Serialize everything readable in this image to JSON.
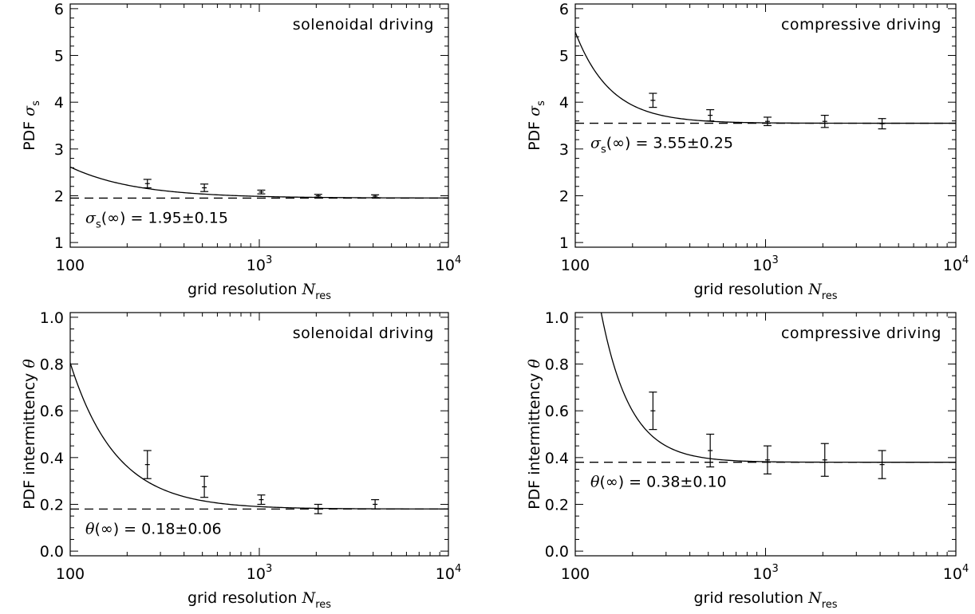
{
  "chart_data": [
    {
      "type": "scatter",
      "panel_label": "solenoidal driving",
      "xlabel": "grid resolution N_res",
      "xlabel_parts": {
        "text": "grid resolution ",
        "symbol": "N",
        "subscript": "res"
      },
      "ylabel": "PDF σ_s",
      "ylabel_parts": {
        "text": "PDF ",
        "symbol": "σ",
        "subscript": "s"
      },
      "x_scale": "log",
      "xlim": [
        100,
        10000
      ],
      "ylim": [
        0.9,
        6.1
      ],
      "x_tick_labels": [
        {
          "value": 100,
          "text": "100"
        },
        {
          "value": 1000,
          "base": "10",
          "exp": "3"
        },
        {
          "value": 10000,
          "base": "10",
          "exp": "4"
        }
      ],
      "y_ticks": [
        1,
        2,
        3,
        4,
        5,
        6
      ],
      "y_minor": [
        1.2,
        1.4,
        1.6,
        1.8,
        2.2,
        2.4,
        2.6,
        2.8,
        3.2,
        3.4,
        3.6,
        3.8,
        4.2,
        4.4,
        4.6,
        4.8,
        5.2,
        5.4,
        5.6,
        5.8
      ],
      "points": [
        {
          "x": 256,
          "y": 2.26,
          "err": 0.09
        },
        {
          "x": 512,
          "y": 2.17,
          "err": 0.08
        },
        {
          "x": 1024,
          "y": 2.08,
          "err": 0.04
        },
        {
          "x": 2048,
          "y": 2.0,
          "err": 0.03
        },
        {
          "x": 4096,
          "y": 1.99,
          "err": 0.03
        }
      ],
      "fit": {
        "asymptote": 1.95,
        "a": 0.665,
        "decay_per_decade": 2.9
      },
      "annotation": {
        "symbol": "σ",
        "subscript": "s",
        "rest": "(∞) = 1.95±0.15"
      }
    },
    {
      "type": "scatter",
      "panel_label": "compressive driving",
      "xlabel": "grid resolution N_res",
      "xlabel_parts": {
        "text": "grid resolution ",
        "symbol": "N",
        "subscript": "res"
      },
      "ylabel": "PDF σ_s",
      "ylabel_parts": {
        "text": "PDF ",
        "symbol": "σ",
        "subscript": "s"
      },
      "x_scale": "log",
      "xlim": [
        100,
        10000
      ],
      "ylim": [
        0.9,
        6.1
      ],
      "x_tick_labels": [
        {
          "value": 100,
          "text": "100"
        },
        {
          "value": 1000,
          "base": "10",
          "exp": "3"
        },
        {
          "value": 10000,
          "base": "10",
          "exp": "4"
        }
      ],
      "y_ticks": [
        1,
        2,
        3,
        4,
        5,
        6
      ],
      "y_minor": [
        1.2,
        1.4,
        1.6,
        1.8,
        2.2,
        2.4,
        2.6,
        2.8,
        3.2,
        3.4,
        3.6,
        3.8,
        4.2,
        4.4,
        4.6,
        4.8,
        5.2,
        5.4,
        5.6,
        5.8
      ],
      "points": [
        {
          "x": 256,
          "y": 4.04,
          "err": 0.15
        },
        {
          "x": 512,
          "y": 3.72,
          "err": 0.12
        },
        {
          "x": 1024,
          "y": 3.59,
          "err": 0.09
        },
        {
          "x": 2048,
          "y": 3.59,
          "err": 0.13
        },
        {
          "x": 4096,
          "y": 3.54,
          "err": 0.11
        }
      ],
      "fit": {
        "asymptote": 3.55,
        "a": 1.95,
        "decay_per_decade": 5.4
      },
      "annotation": {
        "symbol": "σ",
        "subscript": "s",
        "rest": "(∞) = 3.55±0.25"
      }
    },
    {
      "type": "scatter",
      "panel_label": "solenoidal driving",
      "xlabel": "grid resolution N_res",
      "xlabel_parts": {
        "text": "grid resolution ",
        "symbol": "N",
        "subscript": "res"
      },
      "ylabel": "PDF intermittency θ",
      "ylabel_parts": {
        "text": "PDF intermittency ",
        "symbol": "θ",
        "subscript": ""
      },
      "x_scale": "log",
      "xlim": [
        100,
        10000
      ],
      "ylim": [
        -0.02,
        1.02
      ],
      "x_tick_labels": [
        {
          "value": 100,
          "text": "100"
        },
        {
          "value": 1000,
          "base": "10",
          "exp": "3"
        },
        {
          "value": 10000,
          "base": "10",
          "exp": "4"
        }
      ],
      "y_ticks": [
        0.0,
        0.2,
        0.4,
        0.6,
        0.8,
        1.0
      ],
      "y_tick_text": [
        "0.0",
        "0.2",
        "0.4",
        "0.6",
        "0.8",
        "1.0"
      ],
      "y_minor": [
        0.05,
        0.1,
        0.15,
        0.25,
        0.3,
        0.35,
        0.45,
        0.5,
        0.55,
        0.65,
        0.7,
        0.75,
        0.85,
        0.9,
        0.95
      ],
      "points": [
        {
          "x": 256,
          "y": 0.37,
          "err": 0.06
        },
        {
          "x": 512,
          "y": 0.275,
          "err": 0.045
        },
        {
          "x": 1024,
          "y": 0.22,
          "err": 0.02
        },
        {
          "x": 2048,
          "y": 0.18,
          "err": 0.02
        },
        {
          "x": 4096,
          "y": 0.2,
          "err": 0.02
        }
      ],
      "fit": {
        "asymptote": 0.18,
        "a": 0.625,
        "decay_per_decade": 4.1
      },
      "annotation": {
        "symbol": "θ",
        "subscript": "",
        "rest": "(∞) = 0.18±0.06"
      }
    },
    {
      "type": "scatter",
      "panel_label": "compressive driving",
      "xlabel": "grid resolution N_res",
      "xlabel_parts": {
        "text": "grid resolution ",
        "symbol": "N",
        "subscript": "res"
      },
      "ylabel": "PDF intermittency θ",
      "ylabel_parts": {
        "text": "PDF intermittency ",
        "symbol": "θ",
        "subscript": ""
      },
      "x_scale": "log",
      "xlim": [
        100,
        10000
      ],
      "ylim": [
        -0.02,
        1.02
      ],
      "x_tick_labels": [
        {
          "value": 100,
          "text": "100"
        },
        {
          "value": 1000,
          "base": "10",
          "exp": "3"
        },
        {
          "value": 10000,
          "base": "10",
          "exp": "4"
        }
      ],
      "y_ticks": [
        0.0,
        0.2,
        0.4,
        0.6,
        0.8,
        1.0
      ],
      "y_tick_text": [
        "0.0",
        "0.2",
        "0.4",
        "0.6",
        "0.8",
        "1.0"
      ],
      "y_minor": [
        0.05,
        0.1,
        0.15,
        0.25,
        0.3,
        0.35,
        0.45,
        0.5,
        0.55,
        0.65,
        0.7,
        0.75,
        0.85,
        0.9,
        0.95
      ],
      "points": [
        {
          "x": 256,
          "y": 0.6,
          "err": 0.08
        },
        {
          "x": 512,
          "y": 0.43,
          "err": 0.07
        },
        {
          "x": 1024,
          "y": 0.39,
          "err": 0.06
        },
        {
          "x": 2048,
          "y": 0.39,
          "err": 0.07
        },
        {
          "x": 4096,
          "y": 0.37,
          "err": 0.06
        }
      ],
      "fit": {
        "asymptote": 0.38,
        "a": 1.55,
        "decay_per_decade": 6.5
      },
      "annotation": {
        "symbol": "θ",
        "subscript": "",
        "rest": "(∞) = 0.38±0.10"
      }
    }
  ]
}
